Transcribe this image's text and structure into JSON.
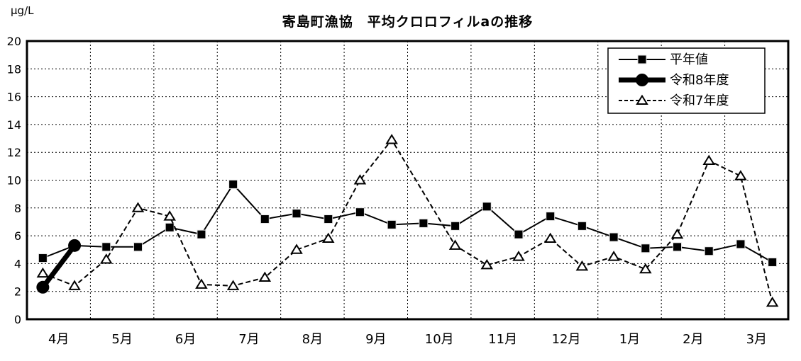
{
  "chart_data": {
    "type": "line",
    "title": "寄島町漁協　平均クロロフィルaの推移",
    "y_unit": "μg/L",
    "ylim": [
      0,
      20
    ],
    "ytick_step": 2,
    "grid": "dashed",
    "legend_position": "top-right-inside",
    "x_months": [
      "4月",
      "5月",
      "6月",
      "7月",
      "8月",
      "9月",
      "10月",
      "11月",
      "12月",
      "1月",
      "2月",
      "3月"
    ],
    "points_per_month": 2,
    "colors": {
      "line": "#000000",
      "background": "#ffffff",
      "open_marker_fill": "#ffffff"
    },
    "series": [
      {
        "name": "平年値",
        "key": "normal",
        "marker": "square-filled",
        "line": "solid-thin",
        "values": [
          4.4,
          5.3,
          5.2,
          5.2,
          6.6,
          6.1,
          9.7,
          7.2,
          7.6,
          7.2,
          7.7,
          6.8,
          6.9,
          6.7,
          8.1,
          6.1,
          7.4,
          6.7,
          5.9,
          5.1,
          5.2,
          4.9,
          5.4,
          4.1
        ]
      },
      {
        "name": "令和8年度",
        "key": "r8",
        "marker": "circle-filled",
        "line": "solid-thick",
        "values": [
          2.3,
          5.3,
          null,
          null,
          null,
          null,
          null,
          null,
          null,
          null,
          null,
          null,
          null,
          null,
          null,
          null,
          null,
          null,
          null,
          null,
          null,
          null,
          null,
          null
        ]
      },
      {
        "name": "令和7年度",
        "key": "r7",
        "marker": "triangle-open",
        "line": "dashed",
        "values": [
          3.3,
          2.4,
          4.3,
          8.0,
          7.4,
          2.5,
          2.4,
          3.0,
          5.0,
          5.8,
          10.0,
          12.9,
          null,
          5.3,
          3.9,
          4.5,
          5.8,
          3.8,
          4.5,
          3.6,
          6.1,
          11.4,
          10.3,
          1.2
        ]
      }
    ]
  }
}
